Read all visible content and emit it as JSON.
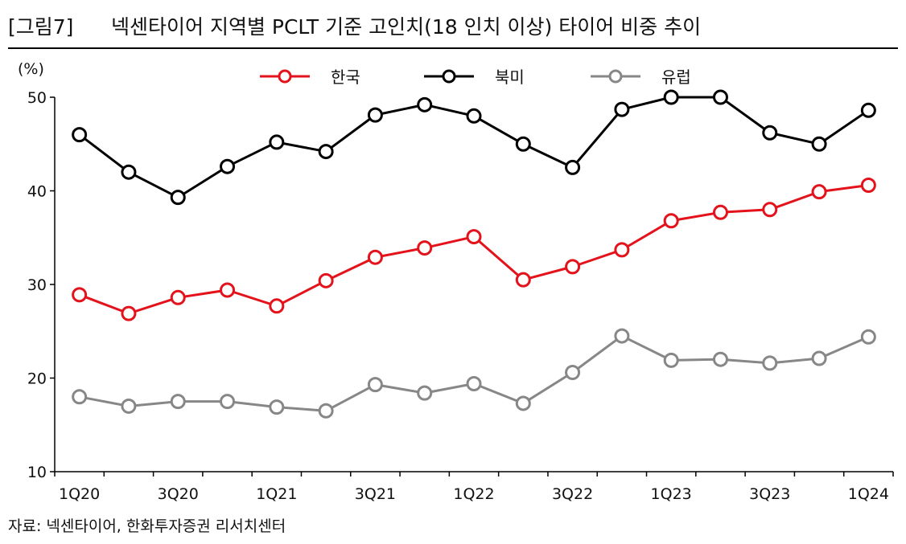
{
  "header": {
    "figure_label": "[그림7]",
    "title": "넥센타이어 지역별 PCLT 기준 고인치(18 인치 이상) 타이어 비중 추이"
  },
  "source": "자료: 넥센타이어, 한화투자증권 리서치센터",
  "chart_data": {
    "type": "line",
    "title": "넥센타이어 지역별 PCLT 기준 고인치(18 인치 이상) 타이어 비중 추이",
    "ylabel": "(%)",
    "xlabel": "",
    "ylim": [
      10,
      50
    ],
    "yticks": [
      10,
      20,
      30,
      40,
      50
    ],
    "categories": [
      "1Q20",
      "2Q20",
      "3Q20",
      "4Q20",
      "1Q21",
      "2Q21",
      "3Q21",
      "4Q21",
      "1Q22",
      "2Q22",
      "3Q22",
      "4Q22",
      "1Q23",
      "2Q23",
      "3Q23",
      "4Q23",
      "1Q24"
    ],
    "x_tick_labels": [
      "1Q20",
      "3Q20",
      "1Q21",
      "3Q21",
      "1Q22",
      "3Q22",
      "1Q23",
      "3Q23",
      "1Q24"
    ],
    "grid": false,
    "legend_position": "top-center",
    "series": [
      {
        "name": "한국",
        "color": "#e3121b",
        "values": [
          28.9,
          26.9,
          28.6,
          29.4,
          27.7,
          30.4,
          32.9,
          33.9,
          35.1,
          30.5,
          31.9,
          33.7,
          36.8,
          37.7,
          38.0,
          39.9,
          40.6
        ]
      },
      {
        "name": "북미",
        "color": "#000000",
        "values": [
          46.0,
          42.0,
          39.3,
          42.6,
          45.2,
          44.2,
          48.1,
          49.2,
          48.0,
          45.0,
          42.5,
          48.7,
          50.0,
          50.0,
          46.2,
          45.0,
          48.6
        ]
      },
      {
        "name": "유럽",
        "color": "#878787",
        "values": [
          18.0,
          17.0,
          17.5,
          17.5,
          16.9,
          16.5,
          19.3,
          18.4,
          19.4,
          17.3,
          20.6,
          24.5,
          21.9,
          22.0,
          21.6,
          22.1,
          24.4
        ]
      }
    ]
  }
}
